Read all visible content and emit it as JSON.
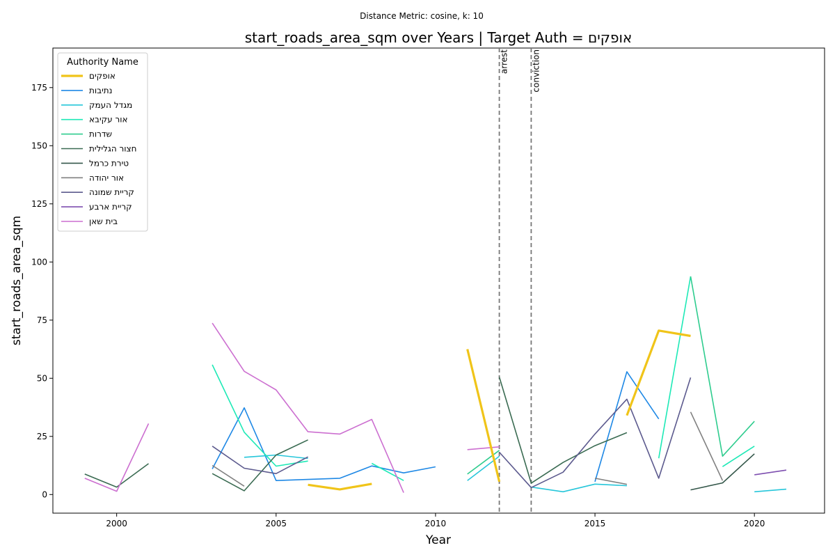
{
  "suptitle": "Distance Metric: cosine, k: 10",
  "chart_data": {
    "type": "line",
    "title": "start_roads_area_sqm over Years | Target Auth = אופקים",
    "xlabel": "Year",
    "ylabel": "start_roads_area_sqm",
    "xlim": [
      1998,
      2022.2
    ],
    "ylim": [
      -8,
      192
    ],
    "xticks": [
      2000,
      2005,
      2010,
      2015,
      2020
    ],
    "yticks": [
      0,
      25,
      50,
      75,
      100,
      125,
      150,
      175
    ],
    "grid": false,
    "legend": {
      "title": "Authority Name",
      "placement": "top-left"
    },
    "events": [
      {
        "label": "arrest",
        "x": 2012
      },
      {
        "label": "conviction",
        "x": 2013
      }
    ],
    "series": [
      {
        "name": "אופקים",
        "color": "#f0c419",
        "target": true,
        "segments": [
          [
            [
              2006,
              4.2
            ],
            [
              2007,
              2.2
            ],
            [
              2008,
              4.6
            ]
          ],
          [
            [
              2011,
              62.5
            ],
            [
              2012,
              5.5
            ]
          ],
          [
            [
              2016,
              34
            ],
            [
              2017,
              70.5
            ],
            [
              2018,
              68.2
            ]
          ]
        ]
      },
      {
        "name": "נתיבות",
        "color": "#1e88e5",
        "target": false,
        "segments": [
          [
            [
              2003,
              11
            ],
            [
              2004,
              37.3
            ],
            [
              2005,
              6
            ],
            [
              2007,
              7
            ],
            [
              2008,
              12.3
            ],
            [
              2009,
              9.3
            ],
            [
              2010,
              11.9
            ]
          ],
          [
            [
              2015,
              5.5
            ],
            [
              2016,
              52.8
            ],
            [
              2017,
              32.5
            ]
          ]
        ]
      },
      {
        "name": "מגדל העמק",
        "color": "#26c6da",
        "target": false,
        "segments": [
          [
            [
              2004,
              16
            ],
            [
              2005,
              17
            ],
            [
              2006,
              15.5
            ]
          ],
          [
            [
              2011,
              6
            ],
            [
              2012,
              16.5
            ]
          ],
          [
            [
              2013,
              3.2
            ],
            [
              2014,
              1.2
            ],
            [
              2015,
              4.5
            ],
            [
              2016,
              3.8
            ]
          ],
          [
            [
              2020,
              1.2
            ],
            [
              2021,
              2.3
            ]
          ]
        ]
      },
      {
        "name": "אור עקיבא",
        "color": "#1de9b6",
        "target": false,
        "segments": [
          [
            [
              2003,
              55.8
            ],
            [
              2004,
              26.8
            ],
            [
              2005,
              12.2
            ],
            [
              2006,
              14.4
            ]
          ],
          [
            [
              2008,
              13.4
            ],
            [
              2009,
              6
            ]
          ],
          [
            [
              2017,
              15.6
            ],
            [
              2018,
              93.8
            ]
          ],
          [
            [
              2019,
              12
            ],
            [
              2020,
              20.8
            ]
          ]
        ]
      },
      {
        "name": "שדרות",
        "color": "#2ecc8e",
        "target": false,
        "segments": [
          [
            [
              2011,
              8.8
            ],
            [
              2012,
              19
            ]
          ],
          [
            [
              2018,
              93.8
            ],
            [
              2019,
              16.5
            ],
            [
              2020,
              31.5
            ]
          ]
        ]
      },
      {
        "name": "חצור הגלילית",
        "color": "#3a6b52",
        "target": false,
        "segments": [
          [
            [
              1999,
              8.8
            ],
            [
              2000,
              3.2
            ],
            [
              2001,
              13.3
            ]
          ],
          [
            [
              2003,
              9
            ],
            [
              2004,
              1.6
            ],
            [
              2005,
              17
            ],
            [
              2006,
              23.5
            ]
          ],
          [
            [
              2012,
              50.5
            ],
            [
              2013,
              4.9
            ],
            [
              2014,
              13.8
            ],
            [
              2015,
              21
            ],
            [
              2016,
              26.6
            ]
          ]
        ]
      },
      {
        "name": "טירת כרמל",
        "color": "#34574a",
        "target": false,
        "segments": [
          [
            [
              2018,
              2
            ],
            [
              2019,
              5
            ],
            [
              2020,
              17.5
            ]
          ]
        ]
      },
      {
        "name": "אור יהודה",
        "color": "#808080",
        "target": false,
        "segments": [
          [
            [
              2003,
              12.5
            ],
            [
              2004,
              3.6
            ]
          ],
          [
            [
              2015,
              7
            ],
            [
              2016,
              4.4
            ]
          ],
          [
            [
              2018,
              35.5
            ],
            [
              2019,
              6
            ]
          ]
        ]
      },
      {
        "name": "קריית שמונה",
        "color": "#5c5a8e",
        "target": false,
        "segments": [
          [
            [
              2003,
              20.8
            ],
            [
              2004,
              11.3
            ],
            [
              2005,
              9
            ],
            [
              2006,
              16.2
            ]
          ],
          [
            [
              2012,
              18.2
            ],
            [
              2013,
              3
            ],
            [
              2014,
              9.6
            ],
            [
              2015,
              26
            ],
            [
              2016,
              41
            ],
            [
              2017,
              7
            ],
            [
              2018,
              50.3
            ]
          ]
        ]
      },
      {
        "name": "קריית ארבע",
        "color": "#7e4fb0",
        "target": false,
        "segments": [
          [
            [
              2020,
              8.5
            ],
            [
              2021,
              10.5
            ]
          ]
        ]
      },
      {
        "name": "בית שאן",
        "color": "#cc6fd0",
        "target": false,
        "segments": [
          [
            [
              1999,
              7
            ],
            [
              2000,
              1.4
            ],
            [
              2001,
              30.5
            ]
          ],
          [
            [
              2003,
              73.7
            ],
            [
              2004,
              53
            ],
            [
              2005,
              45
            ],
            [
              2006,
              27
            ],
            [
              2007,
              26
            ],
            [
              2008,
              32.3
            ],
            [
              2009,
              0.8
            ]
          ],
          [
            [
              2011,
              19.3
            ],
            [
              2012,
              20.5
            ]
          ]
        ]
      }
    ]
  }
}
